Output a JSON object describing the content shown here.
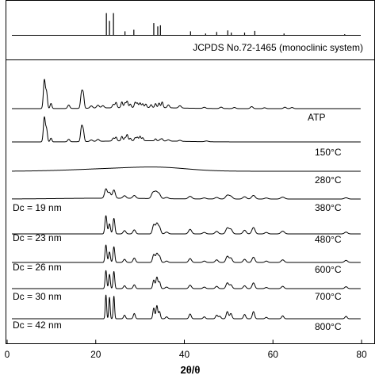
{
  "chart_data": {
    "type": "line",
    "xlabel": "2θ/θ",
    "xlim": [
      0,
      80
    ],
    "x_ticks": [
      "0",
      "20",
      "40",
      "60",
      "80"
    ],
    "reference": {
      "label": "JCPDS No.72-1465 (monoclinic system)",
      "sticks": [
        {
          "x": 22.4,
          "h": 1.0
        },
        {
          "x": 23.1,
          "h": 0.65
        },
        {
          "x": 24.0,
          "h": 1.0
        },
        {
          "x": 26.6,
          "h": 0.18
        },
        {
          "x": 28.6,
          "h": 0.25
        },
        {
          "x": 33.1,
          "h": 0.55
        },
        {
          "x": 34.0,
          "h": 0.4
        },
        {
          "x": 34.6,
          "h": 0.45
        },
        {
          "x": 41.4,
          "h": 0.18
        },
        {
          "x": 44.8,
          "h": 0.08
        },
        {
          "x": 47.3,
          "h": 0.15
        },
        {
          "x": 49.8,
          "h": 0.22
        },
        {
          "x": 50.6,
          "h": 0.12
        },
        {
          "x": 53.6,
          "h": 0.12
        },
        {
          "x": 55.9,
          "h": 0.2
        },
        {
          "x": 62.5,
          "h": 0.08
        },
        {
          "x": 76.2,
          "h": 0.05
        }
      ]
    },
    "series": [
      {
        "name": "ATP",
        "crystallite_size": "",
        "peaks": [
          [
            8.4,
            1.0,
            0.22
          ],
          [
            8.9,
            0.55,
            0.2
          ],
          [
            9.9,
            0.18,
            0.2
          ],
          [
            13.9,
            0.12,
            0.25
          ],
          [
            16.8,
            0.55,
            0.22
          ],
          [
            17.2,
            0.45,
            0.2
          ],
          [
            19.0,
            0.08,
            0.3
          ],
          [
            20.5,
            0.1,
            0.3
          ],
          [
            21.6,
            0.08,
            0.3
          ],
          [
            24.0,
            0.12,
            0.25
          ],
          [
            24.6,
            0.18,
            0.2
          ],
          [
            25.9,
            0.2,
            0.2
          ],
          [
            26.6,
            0.16,
            0.2
          ],
          [
            27.1,
            0.22,
            0.2
          ],
          [
            27.8,
            0.12,
            0.2
          ],
          [
            28.9,
            0.18,
            0.2
          ],
          [
            29.4,
            0.15,
            0.2
          ],
          [
            30.0,
            0.16,
            0.2
          ],
          [
            30.6,
            0.13,
            0.2
          ],
          [
            31.3,
            0.12,
            0.2
          ],
          [
            32.5,
            0.1,
            0.2
          ],
          [
            33.5,
            0.14,
            0.2
          ],
          [
            34.3,
            0.16,
            0.2
          ],
          [
            35.0,
            0.2,
            0.2
          ],
          [
            36.4,
            0.1,
            0.25
          ],
          [
            39.0,
            0.08,
            0.3
          ],
          [
            44.5,
            0.04,
            0.3
          ],
          [
            48.3,
            0.05,
            0.3
          ],
          [
            51.3,
            0.04,
            0.3
          ],
          [
            55.2,
            0.07,
            0.3
          ],
          [
            58.1,
            0.03,
            0.3
          ],
          [
            62.7,
            0.05,
            0.3
          ],
          [
            64.3,
            0.04,
            0.3
          ]
        ],
        "hump": [
          [
            30,
            0.04,
            8
          ]
        ],
        "amp": 36
      },
      {
        "name": "150°C",
        "crystallite_size": "",
        "peaks": [
          [
            8.4,
            1.0,
            0.22
          ],
          [
            8.9,
            0.5,
            0.2
          ],
          [
            9.9,
            0.15,
            0.2
          ],
          [
            13.9,
            0.1,
            0.25
          ],
          [
            16.8,
            0.6,
            0.22
          ],
          [
            17.2,
            0.4,
            0.2
          ],
          [
            19.0,
            0.06,
            0.3
          ],
          [
            20.5,
            0.08,
            0.3
          ],
          [
            24.0,
            0.12,
            0.25
          ],
          [
            24.6,
            0.15,
            0.2
          ],
          [
            25.9,
            0.18,
            0.2
          ],
          [
            26.6,
            0.12,
            0.2
          ],
          [
            27.1,
            0.25,
            0.2
          ],
          [
            27.8,
            0.1,
            0.2
          ],
          [
            28.9,
            0.12,
            0.2
          ],
          [
            29.4,
            0.14,
            0.2
          ],
          [
            30.0,
            0.18,
            0.2
          ],
          [
            30.6,
            0.12,
            0.2
          ],
          [
            33.5,
            0.08,
            0.2
          ],
          [
            34.6,
            0.06,
            0.25
          ],
          [
            35.0,
            0.07,
            0.2
          ],
          [
            36.4,
            0.05,
            0.3
          ],
          [
            39.0,
            0.04,
            0.3
          ],
          [
            45.0,
            0.03,
            0.4
          ]
        ],
        "hump": [
          [
            30,
            0.05,
            8
          ]
        ],
        "amp": 31
      },
      {
        "name": "280°C",
        "crystallite_size": "",
        "peaks": [],
        "hump": [
          [
            26,
            0.5,
            10
          ],
          [
            35,
            0.4,
            6
          ]
        ],
        "amp": 7
      },
      {
        "name": "380°C",
        "crystallite_size": "Dc = 19 nm",
        "peaks": [
          [
            22.3,
            0.9,
            0.3
          ],
          [
            23.1,
            0.55,
            0.3
          ],
          [
            24.1,
            0.8,
            0.3
          ],
          [
            26.5,
            0.25,
            0.35
          ],
          [
            28.7,
            0.28,
            0.35
          ],
          [
            32.9,
            0.55,
            0.35
          ],
          [
            33.6,
            0.6,
            0.35
          ],
          [
            34.3,
            0.45,
            0.35
          ],
          [
            36.0,
            0.12,
            0.4
          ],
          [
            41.3,
            0.25,
            0.4
          ],
          [
            44.5,
            0.1,
            0.4
          ],
          [
            47.3,
            0.15,
            0.4
          ],
          [
            49.7,
            0.35,
            0.4
          ],
          [
            50.5,
            0.25,
            0.4
          ],
          [
            53.6,
            0.22,
            0.4
          ],
          [
            55.6,
            0.35,
            0.4
          ],
          [
            58.5,
            0.1,
            0.4
          ],
          [
            62.2,
            0.18,
            0.45
          ],
          [
            76.5,
            0.12,
            0.4
          ]
        ],
        "hump": [
          [
            22,
            0.08,
            10
          ]
        ],
        "amp": 13
      },
      {
        "name": "480°C",
        "crystallite_size": "Dc = 23 nm",
        "peaks": [
          [
            22.3,
            1.0,
            0.22
          ],
          [
            23.1,
            0.55,
            0.22
          ],
          [
            24.1,
            0.85,
            0.22
          ],
          [
            26.5,
            0.18,
            0.3
          ],
          [
            28.7,
            0.22,
            0.3
          ],
          [
            33.1,
            0.5,
            0.28
          ],
          [
            33.8,
            0.55,
            0.28
          ],
          [
            34.4,
            0.35,
            0.28
          ],
          [
            36.0,
            0.1,
            0.35
          ],
          [
            41.3,
            0.25,
            0.35
          ],
          [
            44.5,
            0.08,
            0.35
          ],
          [
            47.3,
            0.14,
            0.35
          ],
          [
            49.7,
            0.32,
            0.35
          ],
          [
            50.5,
            0.25,
            0.35
          ],
          [
            53.6,
            0.2,
            0.35
          ],
          [
            55.6,
            0.35,
            0.35
          ],
          [
            58.5,
            0.08,
            0.35
          ],
          [
            62.2,
            0.15,
            0.4
          ],
          [
            76.5,
            0.1,
            0.35
          ]
        ],
        "hump": [],
        "amp": 23
      },
      {
        "name": "600°C",
        "crystallite_size": "Dc = 26 nm",
        "peaks": [
          [
            22.3,
            1.0,
            0.2
          ],
          [
            23.1,
            0.6,
            0.2
          ],
          [
            24.1,
            0.9,
            0.2
          ],
          [
            26.5,
            0.18,
            0.28
          ],
          [
            28.7,
            0.25,
            0.28
          ],
          [
            33.1,
            0.45,
            0.26
          ],
          [
            33.8,
            0.5,
            0.26
          ],
          [
            34.4,
            0.35,
            0.26
          ],
          [
            36.0,
            0.08,
            0.3
          ],
          [
            41.3,
            0.22,
            0.32
          ],
          [
            44.5,
            0.08,
            0.32
          ],
          [
            47.3,
            0.15,
            0.32
          ],
          [
            49.7,
            0.35,
            0.32
          ],
          [
            50.5,
            0.25,
            0.32
          ],
          [
            53.6,
            0.18,
            0.32
          ],
          [
            55.6,
            0.3,
            0.32
          ],
          [
            58.5,
            0.08,
            0.32
          ],
          [
            62.2,
            0.15,
            0.35
          ],
          [
            76.5,
            0.12,
            0.35
          ]
        ],
        "hump": [],
        "amp": 22
      },
      {
        "name": "700°C",
        "crystallite_size": "Dc = 30 nm",
        "peaks": [
          [
            22.3,
            0.95,
            0.18
          ],
          [
            23.1,
            0.75,
            0.18
          ],
          [
            24.1,
            0.9,
            0.18
          ],
          [
            26.5,
            0.15,
            0.25
          ],
          [
            28.7,
            0.2,
            0.25
          ],
          [
            33.1,
            0.45,
            0.22
          ],
          [
            33.8,
            0.6,
            0.22
          ],
          [
            34.4,
            0.35,
            0.22
          ],
          [
            36.0,
            0.08,
            0.3
          ],
          [
            41.3,
            0.18,
            0.3
          ],
          [
            44.5,
            0.08,
            0.3
          ],
          [
            47.3,
            0.12,
            0.3
          ],
          [
            49.7,
            0.3,
            0.3
          ],
          [
            50.5,
            0.2,
            0.3
          ],
          [
            53.6,
            0.15,
            0.3
          ],
          [
            55.6,
            0.3,
            0.3
          ],
          [
            58.5,
            0.06,
            0.3
          ],
          [
            62.2,
            0.12,
            0.3
          ],
          [
            76.5,
            0.1,
            0.3
          ]
        ],
        "hump": [],
        "amp": 24
      },
      {
        "name": "800°C",
        "crystallite_size": "Dc = 42 nm",
        "peaks": [
          [
            22.3,
            1.0,
            0.15
          ],
          [
            23.1,
            0.9,
            0.15
          ],
          [
            24.1,
            0.95,
            0.15
          ],
          [
            26.5,
            0.15,
            0.22
          ],
          [
            28.7,
            0.22,
            0.22
          ],
          [
            33.1,
            0.45,
            0.2
          ],
          [
            33.8,
            0.55,
            0.2
          ],
          [
            34.4,
            0.3,
            0.2
          ],
          [
            36.0,
            0.08,
            0.25
          ],
          [
            41.3,
            0.2,
            0.25
          ],
          [
            44.5,
            0.08,
            0.25
          ],
          [
            47.3,
            0.15,
            0.25
          ],
          [
            48.0,
            0.1,
            0.25
          ],
          [
            49.7,
            0.3,
            0.25
          ],
          [
            50.5,
            0.22,
            0.25
          ],
          [
            53.6,
            0.18,
            0.25
          ],
          [
            55.6,
            0.3,
            0.25
          ],
          [
            58.5,
            0.06,
            0.25
          ],
          [
            62.2,
            0.12,
            0.25
          ],
          [
            76.5,
            0.1,
            0.25
          ]
        ],
        "hump": [],
        "amp": 30
      }
    ]
  }
}
